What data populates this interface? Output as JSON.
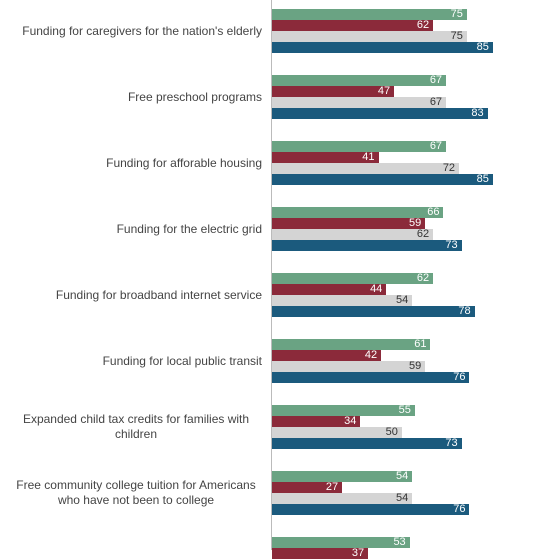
{
  "chart_data": {
    "type": "bar",
    "orientation": "horizontal",
    "categories": [
      "Funding for caregivers for the nation's elderly",
      "Free preschool programs",
      "Funding for afforable housing",
      "Funding for the electric grid",
      "Funding for broadband internet service",
      "Funding for local public transit",
      "Expanded child tax credits for families with children",
      "Free community college tuition for Americans who have not been to college",
      null
    ],
    "series": [
      {
        "color": "#6aa383",
        "values": [
          75,
          67,
          67,
          66,
          62,
          61,
          55,
          54,
          53
        ]
      },
      {
        "color": "#8b2a3a",
        "values": [
          62,
          47,
          41,
          59,
          44,
          42,
          34,
          27,
          37
        ]
      },
      {
        "color": "#d4d4d4",
        "values": [
          75,
          67,
          72,
          62,
          54,
          59,
          50,
          54,
          null
        ]
      },
      {
        "color": "#1b5a7d",
        "values": [
          85,
          83,
          85,
          73,
          78,
          76,
          73,
          76,
          null
        ]
      }
    ],
    "xlim": [
      0,
      107
    ]
  }
}
